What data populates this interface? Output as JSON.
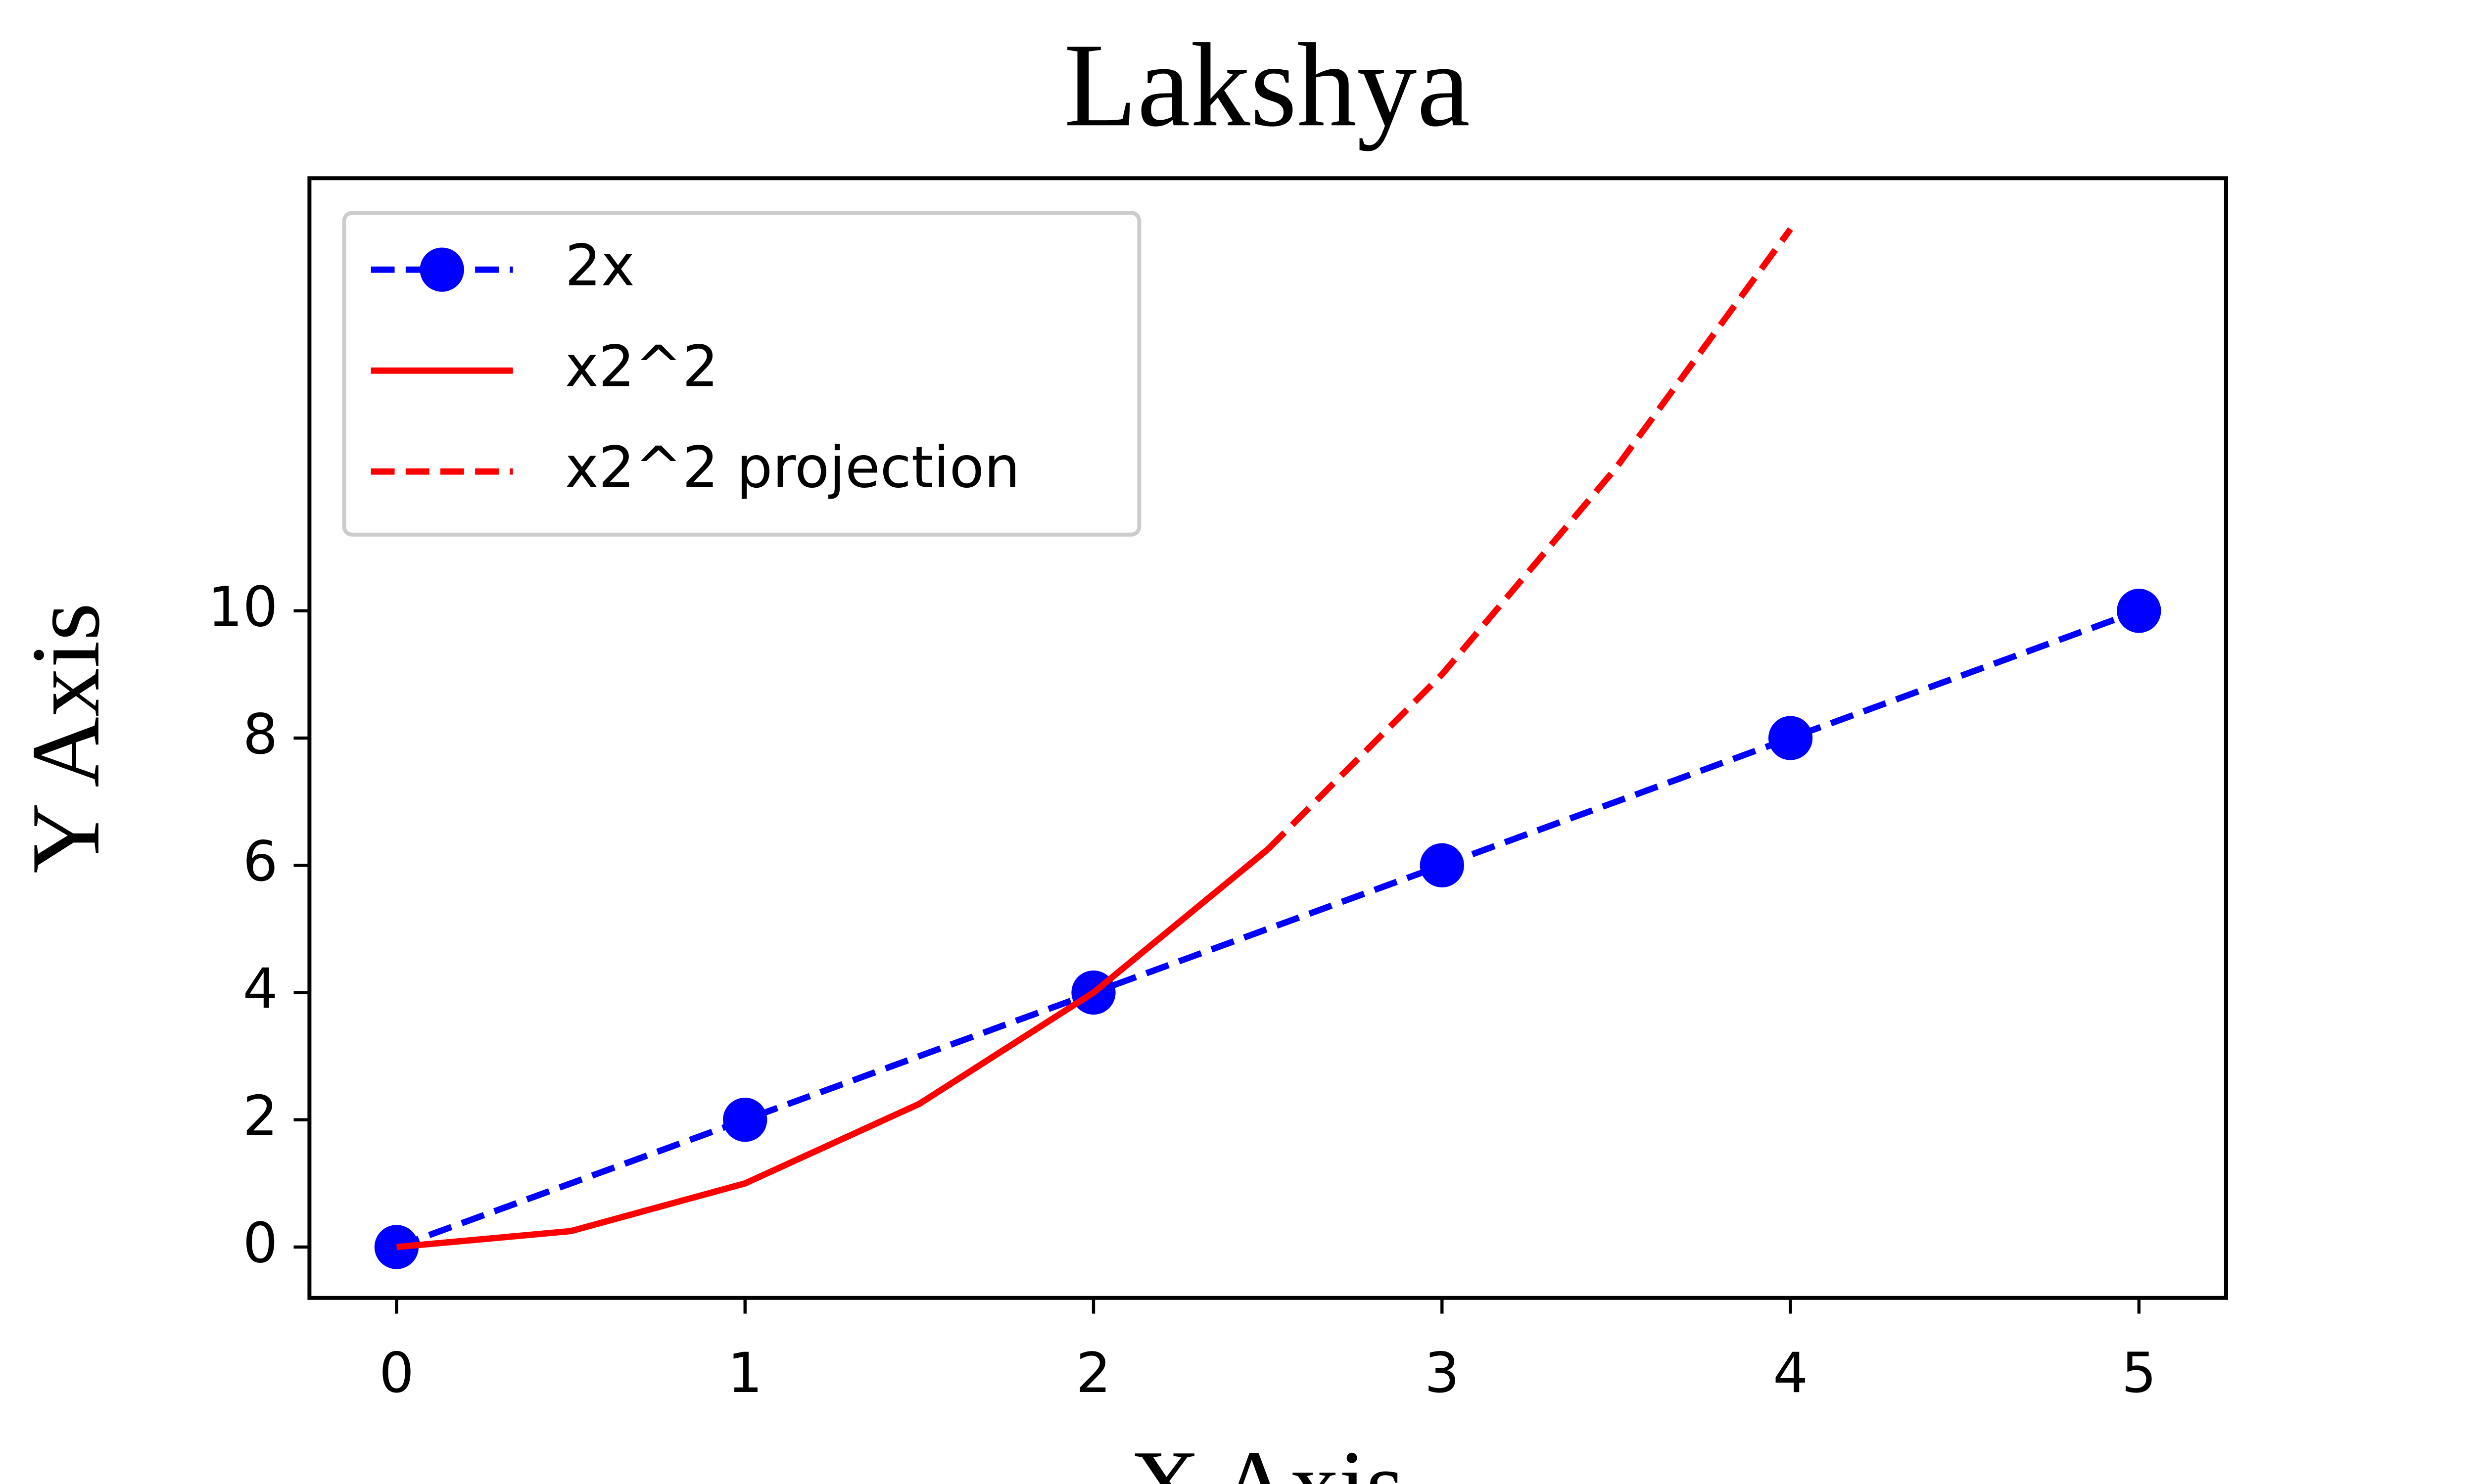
{
  "chart_data": {
    "type": "line",
    "title": "Lakshya",
    "x_label": "X Axis",
    "y_label": "Y Axis",
    "xlim": [
      -0.25,
      5.25
    ],
    "ylim": [
      -0.8,
      16.8
    ],
    "xticks": [
      0,
      1,
      2,
      3,
      4,
      5
    ],
    "yticks": [
      0,
      2,
      4,
      6,
      8,
      10
    ],
    "legend": "upper left",
    "grid": false,
    "series": [
      {
        "name": "2x",
        "color": "#0000ff",
        "linestyle": "dashed",
        "marker": true,
        "x": [
          0,
          1,
          2,
          3,
          4,
          5
        ],
        "values": [
          0,
          2,
          4,
          6,
          8,
          10
        ]
      },
      {
        "name": "x2^2",
        "color": "#ff0000",
        "linestyle": "solid",
        "marker": false,
        "x": [
          0,
          0.5,
          1,
          1.5,
          2,
          2.5
        ],
        "values": [
          0,
          0.25,
          1,
          2.25,
          4,
          6.25
        ]
      },
      {
        "name": "x2^2 projection",
        "color": "#ff0000",
        "linestyle": "dashed",
        "marker": false,
        "x": [
          2.5,
          3,
          3.5,
          4
        ],
        "values": [
          6.25,
          9,
          12.25,
          16
        ]
      }
    ]
  }
}
